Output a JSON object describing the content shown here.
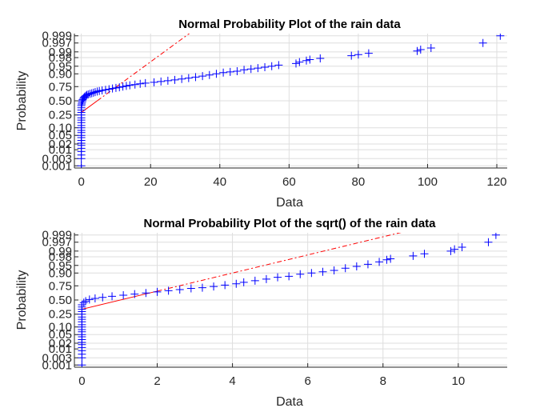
{
  "colors": {
    "marker": "#0000ff",
    "fit_line": "#ff0000",
    "grid": "#dedede",
    "axis": "#262626",
    "background": "#ffffff"
  },
  "chart_data": [
    {
      "type": "scatter",
      "subtype": "normal-probability-plot",
      "title": "Normal Probability Plot of the rain data",
      "xlabel": "Data",
      "ylabel": "Probability",
      "xlim": [
        -2,
        123
      ],
      "xticks": [
        0,
        20,
        40,
        60,
        80,
        100,
        120
      ],
      "y_scale": "normal-probability",
      "ylim_probability": [
        0.0007,
        0.9993
      ],
      "yticks": [
        0.001,
        0.003,
        0.01,
        0.02,
        0.05,
        0.1,
        0.25,
        0.5,
        0.75,
        0.9,
        0.95,
        0.98,
        0.99,
        0.997,
        0.999
      ],
      "ytick_labels": [
        "0.001",
        "0.003",
        "0.01",
        "0.02",
        "0.05",
        "0.10",
        "0.25",
        "0.50",
        "0.75",
        "0.90",
        "0.95",
        "0.98",
        "0.99",
        "0.997",
        "0.999"
      ],
      "grid": true,
      "marker": "+",
      "fit_line": {
        "style": "dash-dot outside data range, solid within",
        "p_at_x": [
          [
            0,
            0.29
          ],
          [
            4.6,
            0.5
          ],
          [
            9.2,
            0.71
          ]
        ]
      },
      "points": [
        [
          0,
          0.001
        ],
        [
          0,
          0.003
        ],
        [
          0,
          0.005
        ],
        [
          0,
          0.008
        ],
        [
          0,
          0.012
        ],
        [
          0,
          0.017
        ],
        [
          0,
          0.022
        ],
        [
          0,
          0.03
        ],
        [
          0,
          0.04
        ],
        [
          0,
          0.05
        ],
        [
          0,
          0.065
        ],
        [
          0,
          0.08
        ],
        [
          0,
          0.1
        ],
        [
          0,
          0.12
        ],
        [
          0,
          0.15
        ],
        [
          0,
          0.18
        ],
        [
          0,
          0.21
        ],
        [
          0,
          0.25
        ],
        [
          0,
          0.29
        ],
        [
          0,
          0.33
        ],
        [
          0,
          0.37
        ],
        [
          0,
          0.41
        ],
        [
          0.1,
          0.44
        ],
        [
          0.2,
          0.47
        ],
        [
          0.3,
          0.5
        ],
        [
          0.4,
          0.52
        ],
        [
          0.6,
          0.545
        ],
        [
          0.8,
          0.565
        ],
        [
          1,
          0.58
        ],
        [
          1.3,
          0.595
        ],
        [
          1.6,
          0.61
        ],
        [
          2,
          0.62
        ],
        [
          2.5,
          0.63
        ],
        [
          3,
          0.64
        ],
        [
          3.5,
          0.65
        ],
        [
          4,
          0.66
        ],
        [
          4.6,
          0.67
        ],
        [
          5.2,
          0.68
        ],
        [
          6,
          0.69
        ],
        [
          7,
          0.7
        ],
        [
          8,
          0.71
        ],
        [
          9,
          0.72
        ],
        [
          10,
          0.73
        ],
        [
          11,
          0.74
        ],
        [
          12,
          0.75
        ],
        [
          13,
          0.76
        ],
        [
          14,
          0.77
        ],
        [
          15.5,
          0.78
        ],
        [
          17,
          0.79
        ],
        [
          18.5,
          0.8
        ],
        [
          21,
          0.81
        ],
        [
          23,
          0.82
        ],
        [
          25,
          0.83
        ],
        [
          27,
          0.84
        ],
        [
          29,
          0.85
        ],
        [
          31,
          0.86
        ],
        [
          33,
          0.87
        ],
        [
          35,
          0.88
        ],
        [
          37,
          0.89
        ],
        [
          39,
          0.9
        ],
        [
          41,
          0.91
        ],
        [
          43,
          0.915
        ],
        [
          45,
          0.92
        ],
        [
          47,
          0.93
        ],
        [
          49,
          0.935
        ],
        [
          51,
          0.94
        ],
        [
          53,
          0.945
        ],
        [
          55,
          0.95
        ],
        [
          57,
          0.955
        ],
        [
          62,
          0.962
        ],
        [
          63,
          0.967
        ],
        [
          65,
          0.972
        ],
        [
          66,
          0.975
        ],
        [
          69,
          0.978
        ],
        [
          78,
          0.984
        ],
        [
          80,
          0.986
        ],
        [
          83,
          0.988
        ],
        [
          97,
          0.991
        ],
        [
          98,
          0.9925
        ],
        [
          101,
          0.994
        ],
        [
          116,
          0.997
        ],
        [
          121,
          0.999
        ]
      ]
    },
    {
      "type": "scatter",
      "subtype": "normal-probability-plot",
      "title": "Normal Probability Plot of the sqrt() of the rain data",
      "xlabel": "Data",
      "ylabel": "Probability",
      "xlim": [
        -0.2,
        11.3
      ],
      "xticks": [
        0,
        2,
        4,
        6,
        8,
        10
      ],
      "y_scale": "normal-probability",
      "ylim_probability": [
        0.0007,
        0.9993
      ],
      "yticks": [
        0.001,
        0.003,
        0.01,
        0.02,
        0.05,
        0.1,
        0.25,
        0.5,
        0.75,
        0.9,
        0.95,
        0.98,
        0.99,
        0.997,
        0.999
      ],
      "ytick_labels": [
        "0.001",
        "0.003",
        "0.01",
        "0.02",
        "0.05",
        "0.10",
        "0.25",
        "0.50",
        "0.75",
        "0.90",
        "0.95",
        "0.98",
        "0.99",
        "0.997",
        "0.999"
      ],
      "grid": true,
      "marker": "+",
      "fit_line": {
        "style": "dash-dot outside data range, solid within",
        "p_at_x": [
          [
            0,
            0.33
          ],
          [
            2,
            0.62
          ],
          [
            8.2,
            0.999
          ]
        ]
      },
      "points": [
        [
          0,
          0.001
        ],
        [
          0,
          0.003
        ],
        [
          0,
          0.005
        ],
        [
          0,
          0.008
        ],
        [
          0,
          0.012
        ],
        [
          0,
          0.017
        ],
        [
          0,
          0.022
        ],
        [
          0,
          0.03
        ],
        [
          0,
          0.04
        ],
        [
          0,
          0.05
        ],
        [
          0,
          0.065
        ],
        [
          0,
          0.08
        ],
        [
          0,
          0.1
        ],
        [
          0,
          0.12
        ],
        [
          0,
          0.15
        ],
        [
          0,
          0.18
        ],
        [
          0,
          0.21
        ],
        [
          0,
          0.25
        ],
        [
          0,
          0.29
        ],
        [
          0,
          0.33
        ],
        [
          0,
          0.37
        ],
        [
          0,
          0.41
        ],
        [
          0.05,
          0.45
        ],
        [
          0.1,
          0.48
        ],
        [
          0.2,
          0.51
        ],
        [
          0.35,
          0.53
        ],
        [
          0.55,
          0.55
        ],
        [
          0.8,
          0.57
        ],
        [
          1.1,
          0.59
        ],
        [
          1.4,
          0.61
        ],
        [
          1.7,
          0.63
        ],
        [
          2,
          0.65
        ],
        [
          2.3,
          0.67
        ],
        [
          2.6,
          0.69
        ],
        [
          2.9,
          0.71
        ],
        [
          3.2,
          0.72
        ],
        [
          3.5,
          0.74
        ],
        [
          3.8,
          0.76
        ],
        [
          4.1,
          0.78
        ],
        [
          4.3,
          0.8
        ],
        [
          4.6,
          0.82
        ],
        [
          4.9,
          0.84
        ],
        [
          5.2,
          0.86
        ],
        [
          5.5,
          0.87
        ],
        [
          5.8,
          0.89
        ],
        [
          6.1,
          0.9
        ],
        [
          6.4,
          0.91
        ],
        [
          6.7,
          0.92
        ],
        [
          7,
          0.935
        ],
        [
          7.3,
          0.945
        ],
        [
          7.6,
          0.955
        ],
        [
          7.9,
          0.965
        ],
        [
          8.1,
          0.972
        ],
        [
          8.2,
          0.975
        ],
        [
          8.8,
          0.982
        ],
        [
          9.1,
          0.986
        ],
        [
          9.8,
          0.99
        ],
        [
          9.9,
          0.992
        ],
        [
          10.1,
          0.994
        ],
        [
          10.8,
          0.997
        ],
        [
          11,
          0.999
        ]
      ]
    }
  ]
}
